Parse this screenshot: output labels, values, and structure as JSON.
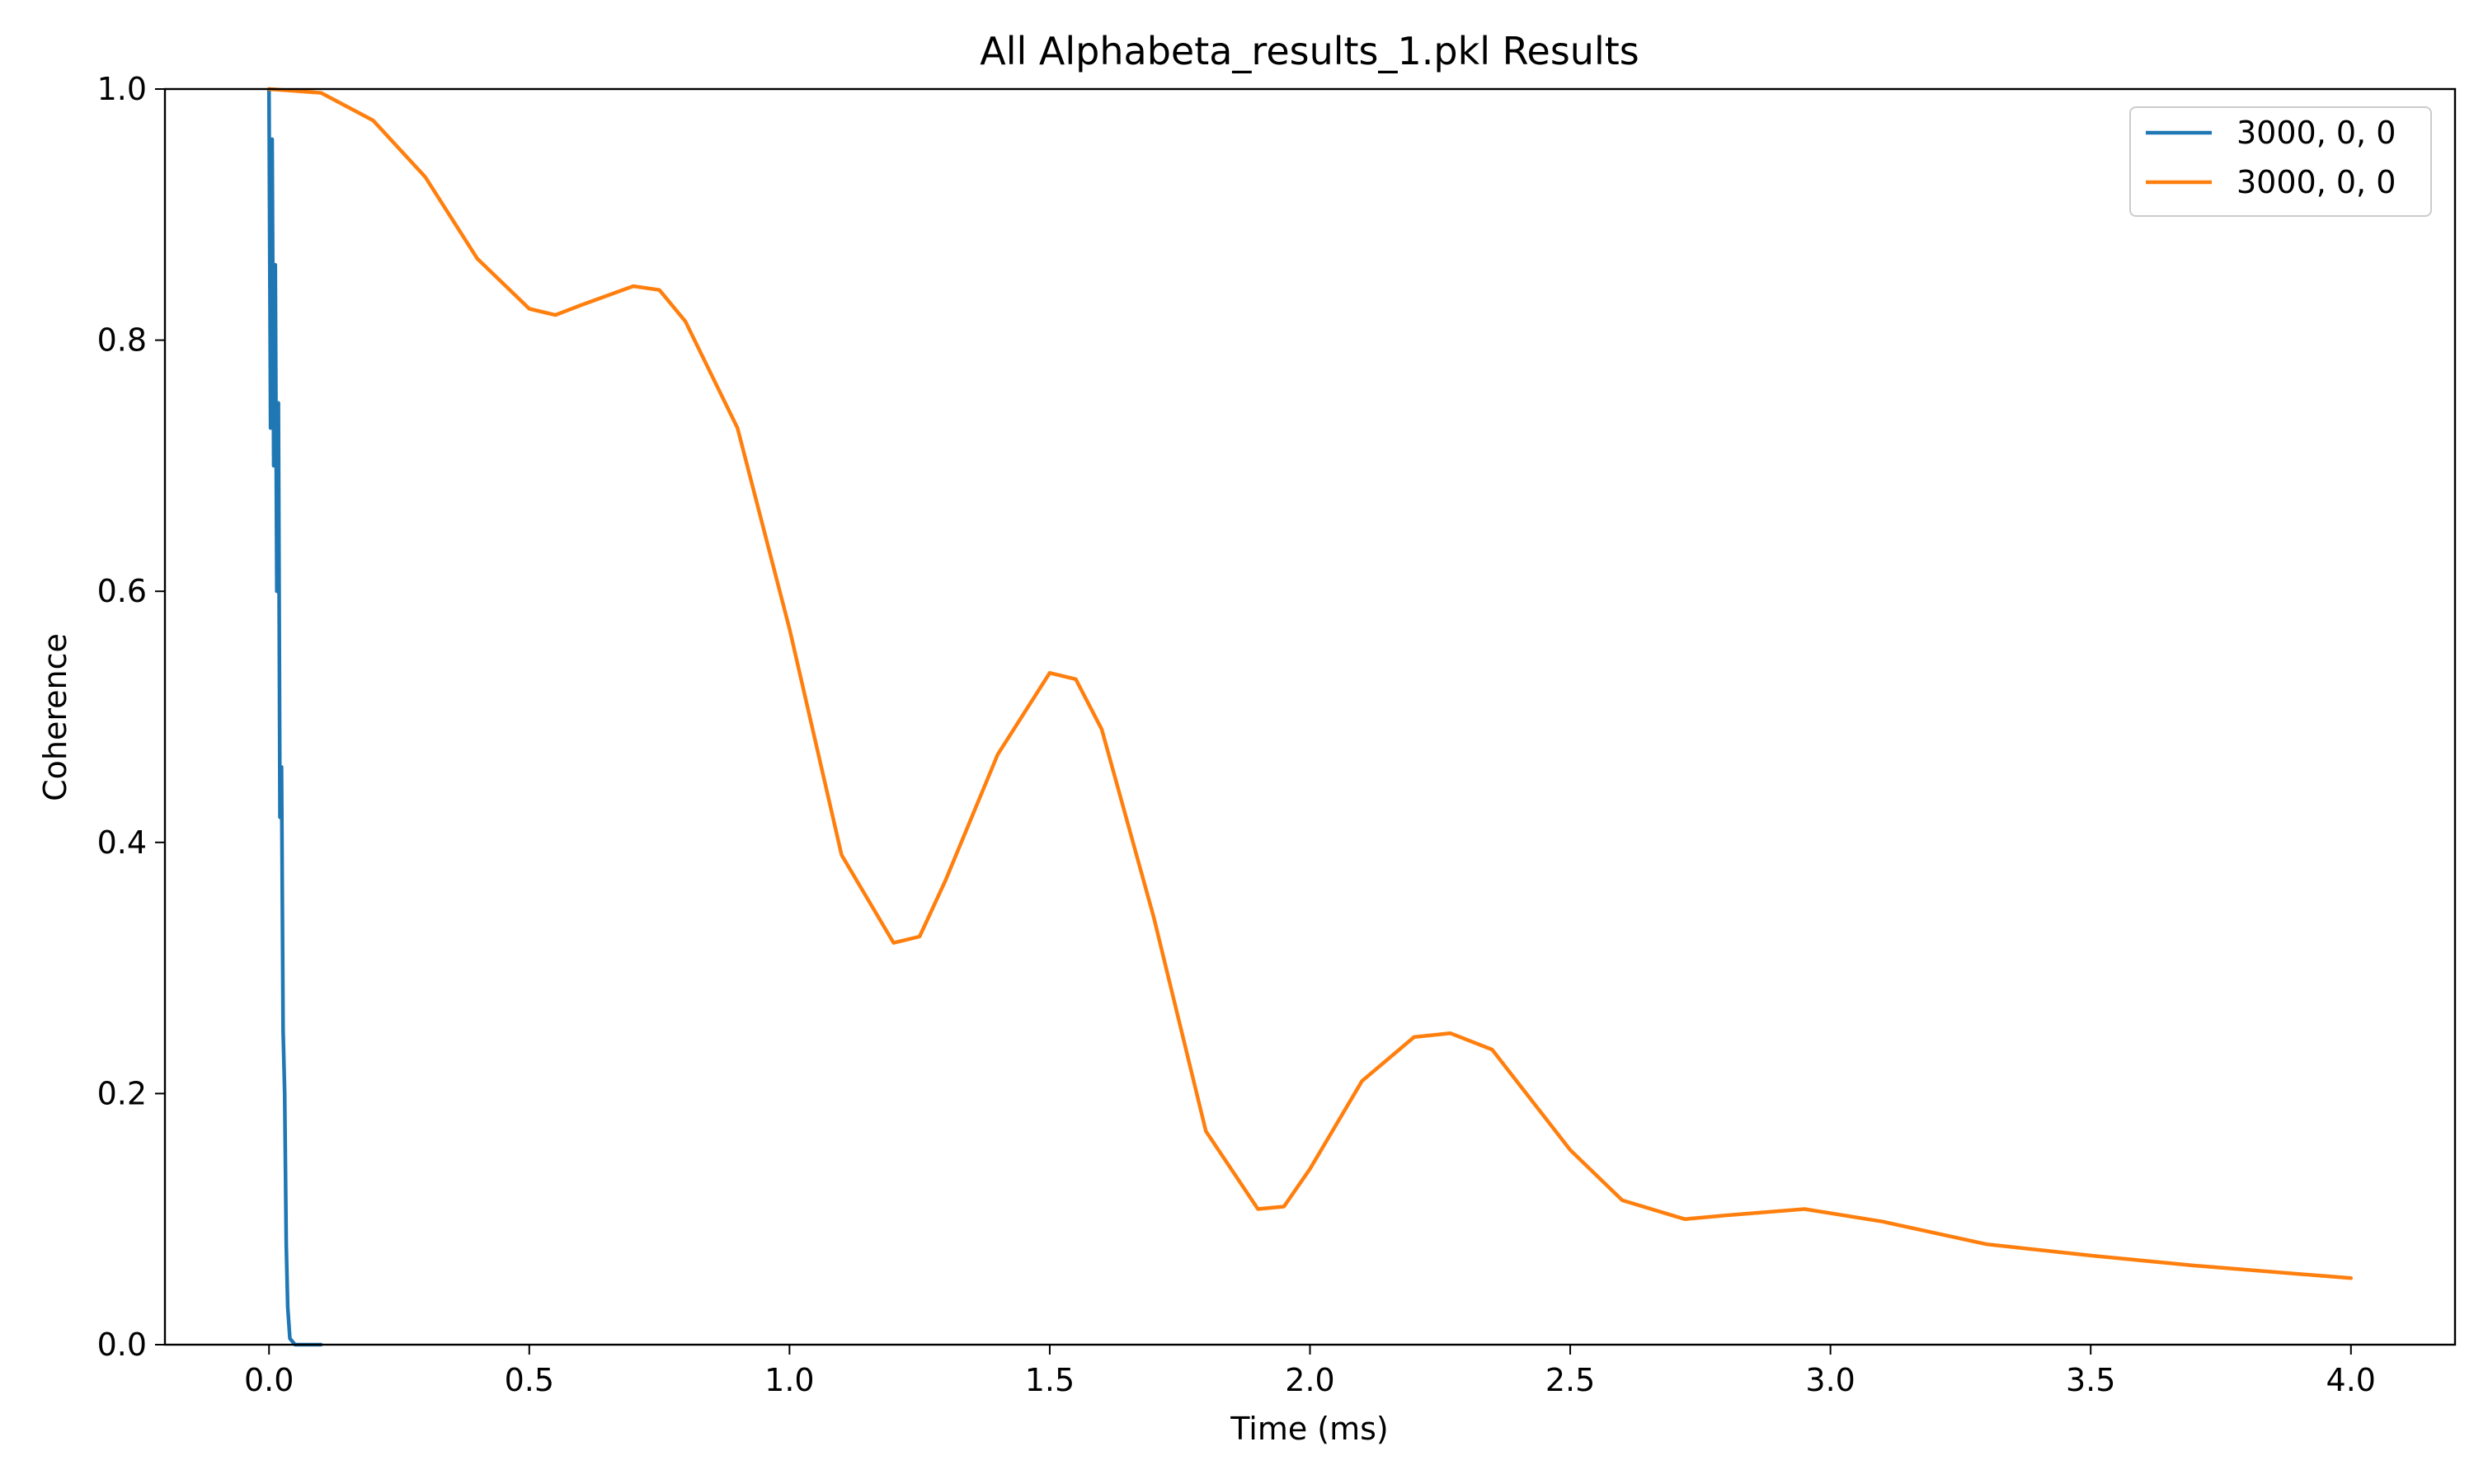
{
  "chart_data": {
    "type": "line",
    "title": "All Alphabeta_results_1.pkl Results",
    "xlabel": "Time (ms)",
    "ylabel": "Coherence",
    "xlim": [
      -0.2,
      4.2
    ],
    "ylim": [
      0.0,
      1.0
    ],
    "x_ticks": [
      0.0,
      0.5,
      1.0,
      1.5,
      2.0,
      2.5,
      3.0,
      3.5,
      4.0
    ],
    "x_tick_labels": [
      "0.0",
      "0.5",
      "1.0",
      "1.5",
      "2.0",
      "2.5",
      "3.0",
      "3.5",
      "4.0"
    ],
    "y_ticks": [
      0.0,
      0.2,
      0.4,
      0.6,
      0.8,
      1.0
    ],
    "y_tick_labels": [
      "0.0",
      "0.2",
      "0.4",
      "0.6",
      "0.8",
      "1.0"
    ],
    "grid": false,
    "legend_position": "top-right",
    "series": [
      {
        "name": "3000, 0, 0",
        "color": "#1f77b4",
        "x": [
          0.0,
          0.003,
          0.006,
          0.009,
          0.012,
          0.015,
          0.018,
          0.021,
          0.024,
          0.027,
          0.03,
          0.033,
          0.036,
          0.04,
          0.05,
          0.06,
          0.08,
          0.1
        ],
        "y": [
          1.0,
          0.73,
          0.96,
          0.7,
          0.86,
          0.6,
          0.75,
          0.42,
          0.46,
          0.25,
          0.2,
          0.08,
          0.03,
          0.005,
          0.0,
          0.0,
          0.0,
          0.0
        ]
      },
      {
        "name": "3000, 0, 0",
        "color": "#ff7f0e",
        "x": [
          0.0,
          0.1,
          0.2,
          0.3,
          0.4,
          0.5,
          0.55,
          0.6,
          0.7,
          0.75,
          0.8,
          0.9,
          1.0,
          1.1,
          1.2,
          1.25,
          1.3,
          1.4,
          1.5,
          1.55,
          1.6,
          1.7,
          1.8,
          1.9,
          1.95,
          2.0,
          2.1,
          2.2,
          2.27,
          2.35,
          2.5,
          2.6,
          2.72,
          2.8,
          2.95,
          3.1,
          3.3,
          3.5,
          3.7,
          4.0
        ],
        "y": [
          1.0,
          0.997,
          0.975,
          0.93,
          0.865,
          0.825,
          0.82,
          0.828,
          0.843,
          0.84,
          0.815,
          0.73,
          0.57,
          0.39,
          0.32,
          0.325,
          0.37,
          0.47,
          0.535,
          0.53,
          0.49,
          0.34,
          0.17,
          0.108,
          0.11,
          0.14,
          0.21,
          0.245,
          0.248,
          0.235,
          0.155,
          0.115,
          0.1,
          0.103,
          0.108,
          0.098,
          0.08,
          0.071,
          0.063,
          0.053
        ]
      }
    ]
  }
}
